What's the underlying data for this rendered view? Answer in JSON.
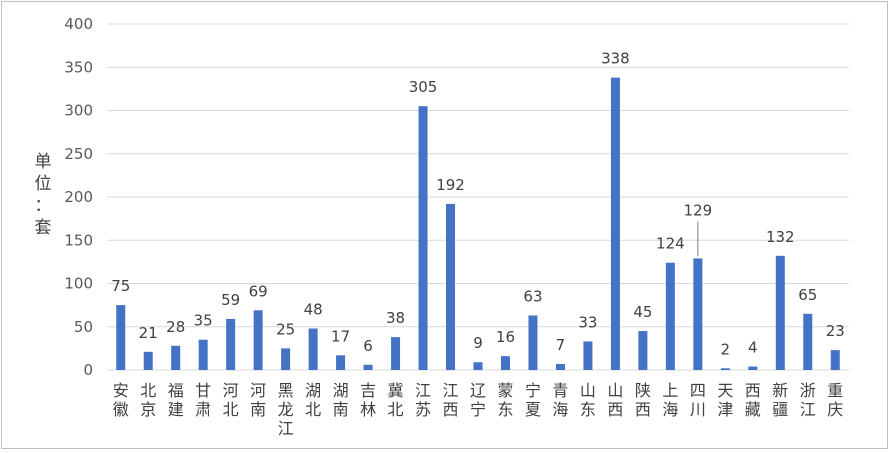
{
  "chart_data": {
    "type": "bar",
    "ylabel": "单位：套",
    "ylim": [
      0,
      400
    ],
    "yticks": [
      0,
      50,
      100,
      150,
      200,
      250,
      300,
      350,
      400
    ],
    "grid": true,
    "bar_color": "#4472c4",
    "categories": [
      "安徽",
      "北京",
      "福建",
      "甘肃",
      "河北",
      "河南",
      "黑龙江",
      "湖北",
      "湖南",
      "吉林",
      "冀北",
      "江苏",
      "江西",
      "辽宁",
      "蒙东",
      "宁夏",
      "青海",
      "山东",
      "山西",
      "陕西",
      "上海",
      "四川",
      "天津",
      "西藏",
      "新疆",
      "浙江",
      "重庆"
    ],
    "values": [
      75,
      21,
      28,
      35,
      59,
      69,
      25,
      48,
      17,
      6,
      38,
      305,
      192,
      9,
      16,
      63,
      7,
      33,
      338,
      45,
      124,
      129,
      2,
      4,
      132,
      65,
      23
    ]
  }
}
